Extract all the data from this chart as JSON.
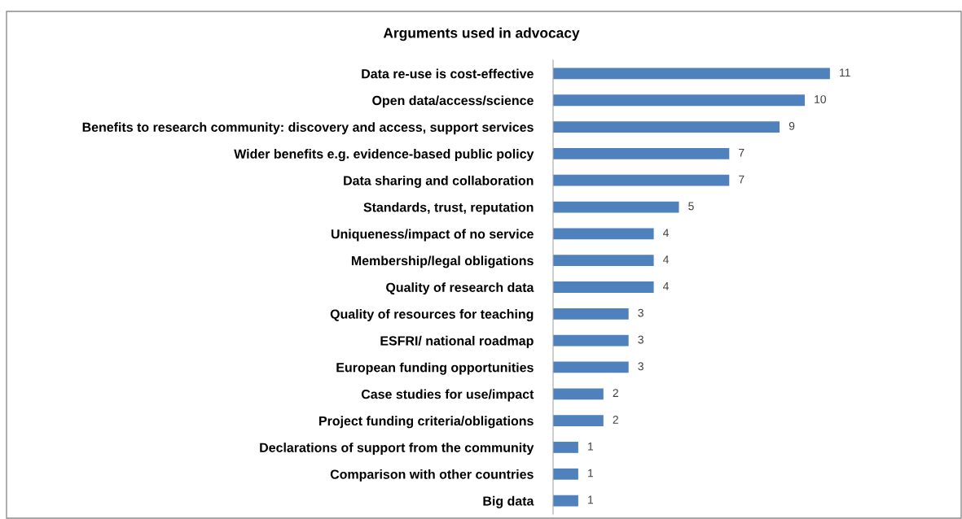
{
  "chart_data": {
    "type": "bar",
    "orientation": "horizontal",
    "title": "Arguments used in advocacy",
    "categories": [
      "Data re-use is cost-effective",
      "Open data/access/science",
      "Benefits to research community: discovery and access, support services",
      "Wider benefits e.g. evidence-based public policy",
      "Data sharing and collaboration",
      "Standards, trust, reputation",
      "Uniqueness/impact of no service",
      "Membership/legal obligations",
      "Quality of research data",
      "Quality of resources for teaching",
      "ESFRI/ national roadmap",
      "European funding opportunities",
      "Case studies for use/impact",
      "Project funding criteria/obligations",
      "Declarations of support from the community",
      "Comparison with other countries",
      "Big data"
    ],
    "values": [
      11,
      10,
      9,
      7,
      7,
      5,
      4,
      4,
      4,
      3,
      3,
      3,
      2,
      2,
      1,
      1,
      1
    ],
    "color": "#4f81bd",
    "data_labels": true
  }
}
